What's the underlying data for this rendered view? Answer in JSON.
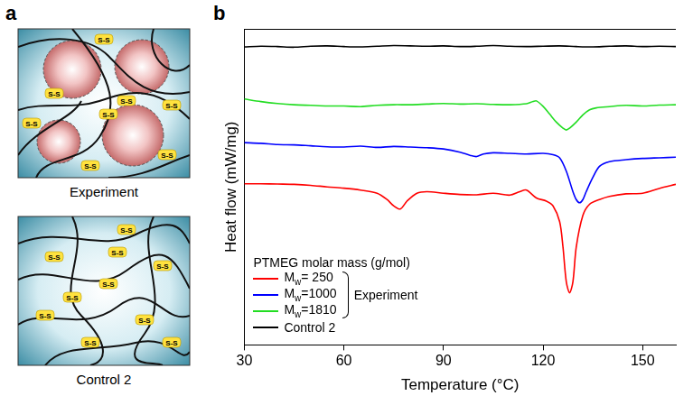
{
  "panel_a": {
    "letter": "a",
    "bond_label": "S-S",
    "schematics": [
      {
        "caption": "Experiment"
      },
      {
        "caption": "Control 2"
      }
    ]
  },
  "panel_b": {
    "letter": "b"
  },
  "chart_data": {
    "type": "line",
    "x_label": "Temperature (°C)",
    "y_label": "Heat flow (mW/mg)",
    "legend_title": "PTMEG molar mass (g/mol)",
    "legend_bracket": {
      "label": "Experiment",
      "members": [
        "Mw= 250",
        "Mw=1000",
        "Mw=1810"
      ]
    },
    "xlim": [
      30,
      160
    ],
    "xticks": [
      30,
      60,
      90,
      120,
      150
    ],
    "ylim": [
      0,
      100
    ],
    "yticks": [],
    "tick_labels": "x",
    "grid": false,
    "legend": "lower left",
    "series": [
      {
        "name": "Mw= 250",
        "color": "#ff0000",
        "x": [
          30,
          35,
          40,
          45,
          50,
          55,
          60,
          65,
          70,
          73,
          75,
          77,
          79,
          82,
          85,
          90,
          95,
          100,
          105,
          110,
          113,
          115,
          118,
          121,
          123,
          125,
          126,
          127,
          128,
          129,
          130,
          132,
          134,
          137,
          140,
          145,
          150,
          155,
          160
        ],
        "values": [
          51.0,
          51.0,
          50.9,
          50.8,
          50.5,
          50.0,
          49.6,
          49.0,
          48.0,
          46.0,
          44.0,
          43.0,
          45.5,
          48.0,
          48.5,
          48.0,
          47.6,
          47.5,
          48.0,
          47.4,
          48.5,
          49.0,
          46.5,
          45.5,
          44.0,
          39.0,
          31.0,
          20.0,
          16.5,
          20.0,
          31.0,
          41.0,
          44.5,
          46.0,
          47.0,
          47.8,
          48.0,
          49.5,
          50.8
        ]
      },
      {
        "name": "Mw=1000",
        "color": "#0000ff",
        "x": [
          30,
          35,
          40,
          45,
          50,
          55,
          60,
          65,
          70,
          75,
          80,
          85,
          90,
          95,
          98,
          100,
          102,
          105,
          110,
          115,
          120,
          123,
          125,
          127,
          129,
          130,
          131,
          132,
          133,
          135,
          137,
          140,
          145,
          150,
          155,
          160
        ],
        "values": [
          64.0,
          63.8,
          63.4,
          63.3,
          63.0,
          62.7,
          62.6,
          62.9,
          62.5,
          62.8,
          62.6,
          62.4,
          62.0,
          61.0,
          60.0,
          59.6,
          60.4,
          60.8,
          60.6,
          60.4,
          60.6,
          60.2,
          59.2,
          55.0,
          48.5,
          46.0,
          45.0,
          46.0,
          48.5,
          53.0,
          56.5,
          58.0,
          58.6,
          59.0,
          59.2,
          59.4
        ]
      },
      {
        "name": "Mw=1810",
        "color": "#22dd22",
        "x": [
          30,
          35,
          40,
          45,
          50,
          55,
          60,
          65,
          70,
          75,
          80,
          85,
          90,
          95,
          100,
          105,
          110,
          115,
          117,
          118,
          120,
          122,
          124,
          126,
          127,
          128,
          130,
          132,
          134,
          136,
          140,
          145,
          150,
          155,
          160
        ],
        "values": [
          77.8,
          77.0,
          76.4,
          76.0,
          75.8,
          75.6,
          75.6,
          75.4,
          75.8,
          76.0,
          76.0,
          76.2,
          76.4,
          76.2,
          76.3,
          76.1,
          76.0,
          76.3,
          77.0,
          77.2,
          75.5,
          73.0,
          70.5,
          68.6,
          68.0,
          68.6,
          70.5,
          72.8,
          74.4,
          75.0,
          75.4,
          75.8,
          75.6,
          75.9,
          76.0
        ]
      },
      {
        "name": "Control 2",
        "color": "#000000",
        "x": [
          30,
          35,
          40,
          45,
          50,
          55,
          60,
          65,
          70,
          75,
          80,
          85,
          90,
          95,
          100,
          105,
          110,
          115,
          120,
          125,
          130,
          135,
          140,
          145,
          150,
          155,
          160
        ],
        "values": [
          94.3,
          94.5,
          94.4,
          94.2,
          94.5,
          94.6,
          94.4,
          94.3,
          94.5,
          94.7,
          94.6,
          94.5,
          94.6,
          94.4,
          94.5,
          94.7,
          94.5,
          94.4,
          94.5,
          94.6,
          94.4,
          94.3,
          94.5,
          94.6,
          94.4,
          94.5,
          94.4
        ]
      }
    ]
  }
}
